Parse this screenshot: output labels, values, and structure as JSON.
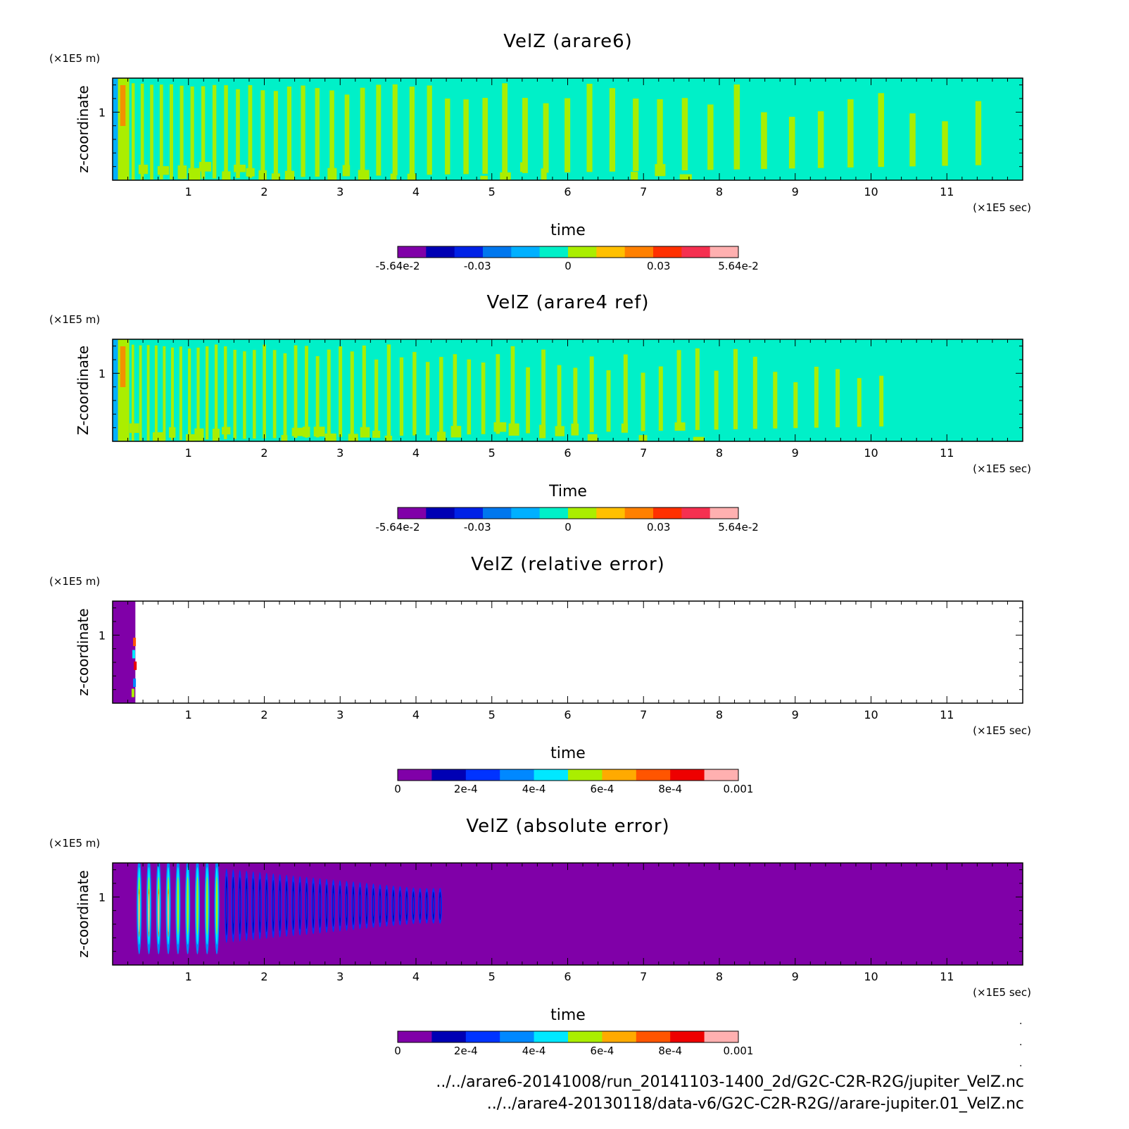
{
  "figure": {
    "file_paths": [
      "../../arare6-20141008/run_20141103-1400_2d/G2C-C2R-R2G/jupiter_VelZ.nc",
      "../../arare4-20130118/data-v6/G2C-C2R-R2G//arare-jupiter.01_VelZ.nc"
    ]
  },
  "chart_data": [
    {
      "type": "heatmap",
      "title": "VelZ (arare6)",
      "xlabel": "time",
      "ylabel": "z-coordinate",
      "x_unit": "(×1E5 sec)",
      "y_unit": "(×1E5 m)",
      "xlim": [
        0,
        12
      ],
      "ylim": [
        0,
        1.5
      ],
      "xticks": [
        "1",
        "2",
        "3",
        "4",
        "5",
        "6",
        "7",
        "8",
        "9",
        "10",
        "11"
      ],
      "yticks": [
        "1"
      ],
      "colorbar": {
        "range": [
          -0.0564,
          0.0564
        ],
        "tick_labels": [
          "-5.64e-2",
          "-0.03",
          "0",
          "0.03",
          "5.64e-2"
        ],
        "tick_values": [
          -0.0564,
          -0.03,
          0,
          0.03,
          0.0564
        ],
        "colors": [
          "#8000a8",
          "#0000b4",
          "#0022e6",
          "#0077ee",
          "#00b0ff",
          "#00f0c8",
          "#aaee00",
          "#ffc000",
          "#ff8000",
          "#ff3000",
          "#f53050",
          "#ffb0b0"
        ]
      },
      "pattern": {
        "background": "#00f0c8",
        "oscillation_color": "#aaee00",
        "start_x": 0.0,
        "end_x": 11.65,
        "period": 0.12,
        "period_growth": 0.03,
        "decay": 0.35
      }
    },
    {
      "type": "heatmap",
      "title": "VelZ (arare4 ref)",
      "xlabel": "Time",
      "ylabel": "Z-coordinate",
      "x_unit": "(×1E5 sec)",
      "y_unit": "(×1E5 m)",
      "xlim": [
        0,
        12
      ],
      "ylim": [
        0,
        1.5
      ],
      "xticks": [
        "1",
        "2",
        "3",
        "4",
        "5",
        "6",
        "7",
        "8",
        "9",
        "10",
        "11"
      ],
      "yticks": [
        "1"
      ],
      "colorbar": {
        "range": [
          -0.0564,
          0.0564
        ],
        "tick_labels": [
          "-5.64e-2",
          "-0.03",
          "0",
          "0.03",
          "5.64e-2"
        ],
        "tick_values": [
          -0.0564,
          -0.03,
          0,
          0.03,
          0.0564
        ],
        "colors": [
          "#8000a8",
          "#0000b4",
          "#0022e6",
          "#0077ee",
          "#00b0ff",
          "#00f0c8",
          "#aaee00",
          "#ffc000",
          "#ff8000",
          "#ff3000",
          "#f53050",
          "#ffb0b0"
        ]
      },
      "pattern": {
        "background": "#00f0c8",
        "oscillation_color": "#aaee00",
        "start_x": 0.0,
        "end_x": 10.4,
        "period": 0.1,
        "period_growth": 0.02,
        "decay": 0.4
      }
    },
    {
      "type": "heatmap",
      "title": "VelZ (relative error)",
      "xlabel": "time",
      "ylabel": "z-coordinate",
      "x_unit": "(×1E5 sec)",
      "y_unit": "(×1E5 m)",
      "xlim": [
        0,
        12
      ],
      "ylim": [
        0,
        1.5
      ],
      "xticks": [
        "1",
        "2",
        "3",
        "4",
        "5",
        "6",
        "7",
        "8",
        "9",
        "10",
        "11"
      ],
      "yticks": [
        "1"
      ],
      "colorbar": {
        "range": [
          0,
          0.001
        ],
        "tick_labels": [
          "0",
          "2e-4",
          "4e-4",
          "6e-4",
          "8e-4",
          "0.001"
        ],
        "tick_values": [
          0,
          0.0002,
          0.0004,
          0.0006,
          0.0008,
          0.001
        ],
        "colors": [
          "#8000a8",
          "#0000b4",
          "#0033ff",
          "#0088ff",
          "#00e8ff",
          "#aaee00",
          "#ffaa00",
          "#ff5500",
          "#ee0000",
          "#ffb0b0"
        ]
      },
      "pattern": {
        "background": "#ffffff",
        "error_band": [
          0.0,
          0.3
        ],
        "band_color": "#8000a8"
      }
    },
    {
      "type": "heatmap",
      "title": "VelZ (absolute error)",
      "xlabel": "time",
      "ylabel": "z-coordinate",
      "x_unit": "(×1E5 sec)",
      "y_unit": "(×1E5 m)",
      "xlim": [
        0,
        12
      ],
      "ylim": [
        0,
        1.5
      ],
      "xticks": [
        "1",
        "2",
        "3",
        "4",
        "5",
        "6",
        "7",
        "8",
        "9",
        "10",
        "11"
      ],
      "yticks": [
        "1"
      ],
      "colorbar": {
        "range": [
          0,
          0.001
        ],
        "tick_labels": [
          "0",
          "2e-4",
          "4e-4",
          "6e-4",
          "8e-4",
          "0.001"
        ],
        "tick_values": [
          0,
          0.0002,
          0.0004,
          0.0006,
          0.0008,
          0.001
        ],
        "colors": [
          "#8000a8",
          "#0000b4",
          "#0033ff",
          "#0088ff",
          "#00e8ff",
          "#aaee00",
          "#ffaa00",
          "#ff5500",
          "#ee0000",
          "#ffb0b0"
        ]
      },
      "pattern": {
        "background": "#8000a8",
        "start_x": 0.35,
        "end_x": 4.35,
        "hot_end_x": 1.4,
        "period": 0.08
      }
    }
  ]
}
